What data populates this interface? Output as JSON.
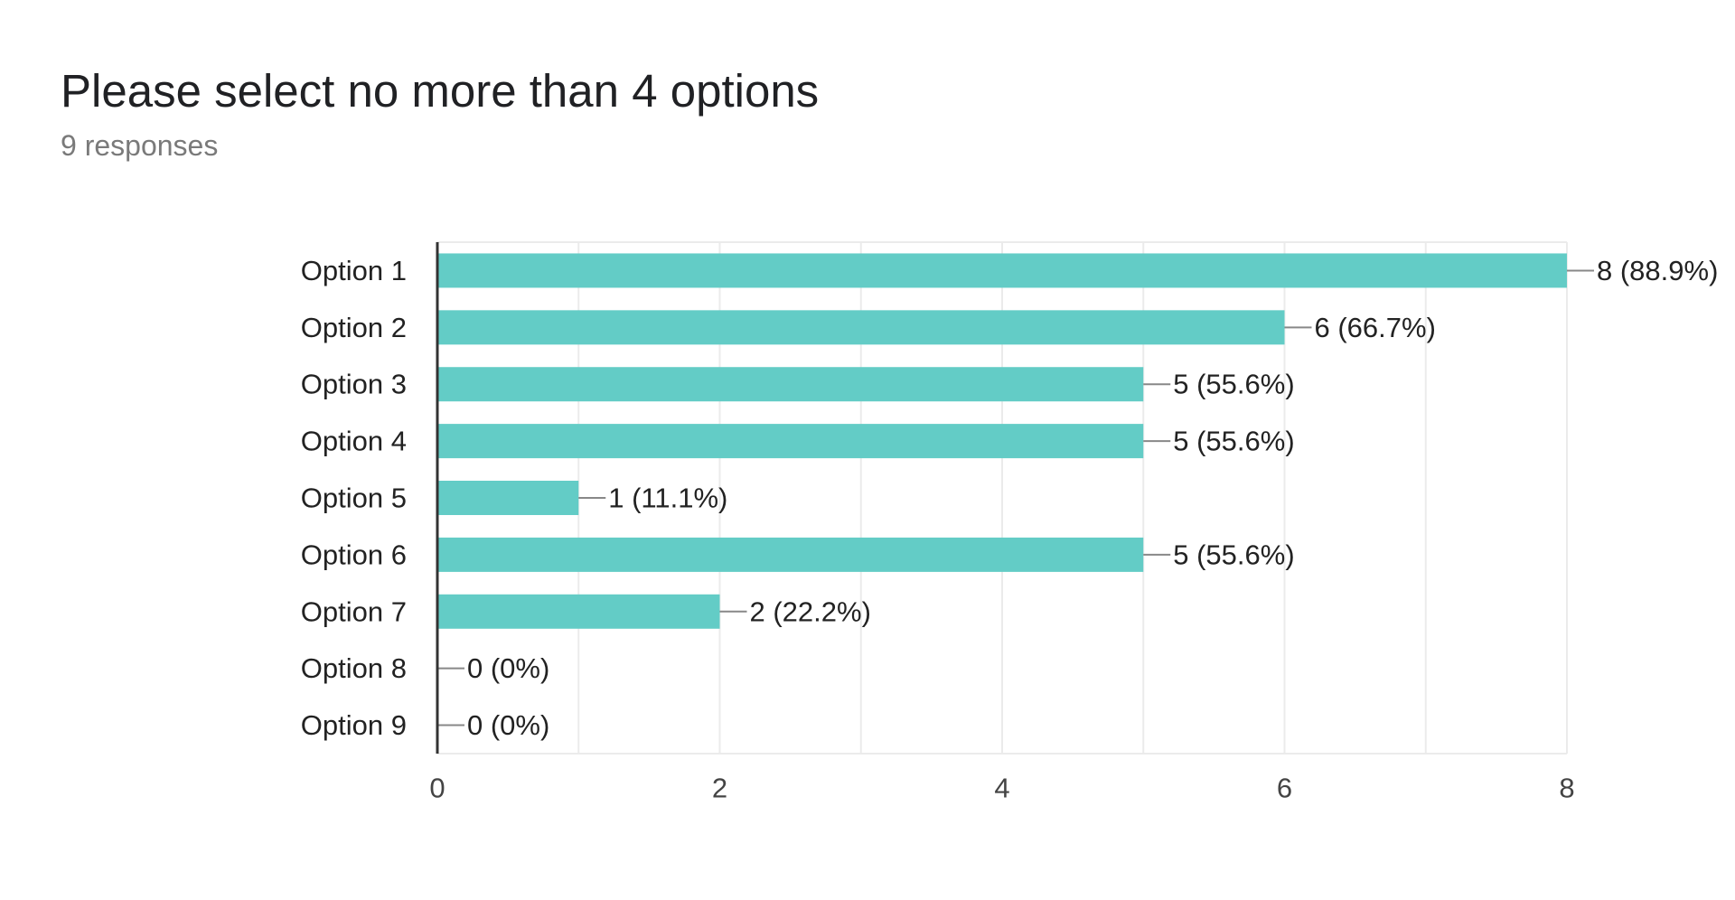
{
  "header": {
    "title": "Please select no more than 4 options",
    "subtitle": "9 responses"
  },
  "colors": {
    "bar": "#63ccc6",
    "grid": "#ebebeb",
    "axis": "#333333",
    "leader": "#888888"
  },
  "chart_data": {
    "type": "bar",
    "orientation": "horizontal",
    "categories": [
      "Option 1",
      "Option 2",
      "Option 3",
      "Option 4",
      "Option 5",
      "Option 6",
      "Option 7",
      "Option 8",
      "Option 9"
    ],
    "values": [
      8,
      6,
      5,
      5,
      1,
      5,
      2,
      0,
      0
    ],
    "data_labels": [
      "8 (88.9%)",
      "6 (66.7%)",
      "5 (55.6%)",
      "5 (55.6%)",
      "1 (11.1%)",
      "5 (55.6%)",
      "2 (22.2%)",
      "0 (0%)",
      "0 (0%)"
    ],
    "xlim": [
      0,
      8
    ],
    "x_ticks": [
      0,
      2,
      4,
      6,
      8
    ],
    "x_tick_labels": [
      "0",
      "2",
      "4",
      "6",
      "8"
    ],
    "grid": true,
    "legend": "none"
  }
}
